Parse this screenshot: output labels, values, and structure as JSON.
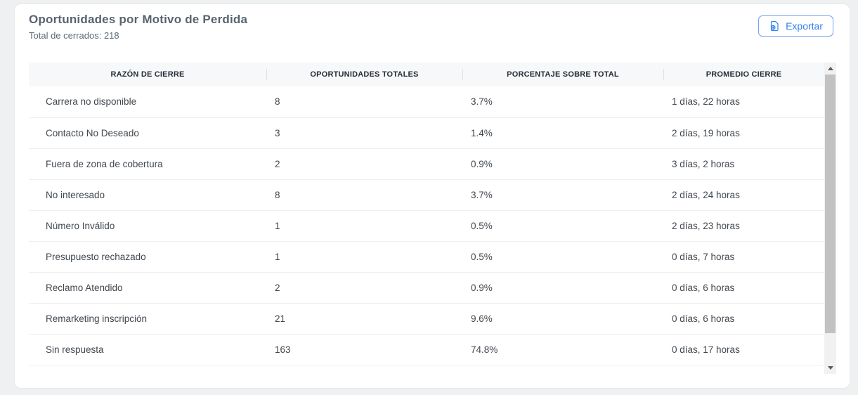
{
  "header": {
    "title": "Oportunidades por Motivo de Perdida",
    "subtitle": "Total de cerrados: 218",
    "export_label": "Exportar"
  },
  "table": {
    "columns": [
      "RAZÓN DE CIERRE",
      "OPORTUNIDADES TOTALES",
      "PORCENTAJE SOBRE TOTAL",
      "PROMEDIO CIERRE"
    ],
    "rows": [
      {
        "reason": "Carrera no disponible",
        "total": "8",
        "percent": "3.7%",
        "avg_close": "1 días, 22 horas"
      },
      {
        "reason": "Contacto No Deseado",
        "total": "3",
        "percent": "1.4%",
        "avg_close": "2 días, 19 horas"
      },
      {
        "reason": "Fuera de zona de cobertura",
        "total": "2",
        "percent": "0.9%",
        "avg_close": "3 días, 2 horas"
      },
      {
        "reason": "No interesado",
        "total": "8",
        "percent": "3.7%",
        "avg_close": "2 días, 24 horas"
      },
      {
        "reason": "Número Inválido",
        "total": "1",
        "percent": "0.5%",
        "avg_close": "2 días, 23 horas"
      },
      {
        "reason": "Presupuesto rechazado",
        "total": "1",
        "percent": "0.5%",
        "avg_close": "0 días, 7 horas"
      },
      {
        "reason": "Reclamo Atendido",
        "total": "2",
        "percent": "0.9%",
        "avg_close": "0 días, 6 horas"
      },
      {
        "reason": "Remarketing inscripción",
        "total": "21",
        "percent": "9.6%",
        "avg_close": "0 días, 6 horas"
      },
      {
        "reason": "Sin respuesta",
        "total": "163",
        "percent": "74.8%",
        "avg_close": "0 días, 17 horas"
      }
    ]
  },
  "icons": {
    "export": "file-export-icon",
    "scroll_up": "scroll-up-arrow-icon",
    "scroll_down": "scroll-down-arrow-icon"
  },
  "colors": {
    "accent_blue": "#2f7ff0",
    "title_text": "#57636e",
    "header_bg": "#f7f8fa",
    "header_text": "#262d37",
    "cell_text": "#40474e",
    "row_divider": "#edeff2",
    "card_border": "#e6eaee",
    "page_bg": "#eef0f2",
    "scrollbar_track": "#f1f1f1",
    "scrollbar_thumb": "#c2c2c2"
  }
}
